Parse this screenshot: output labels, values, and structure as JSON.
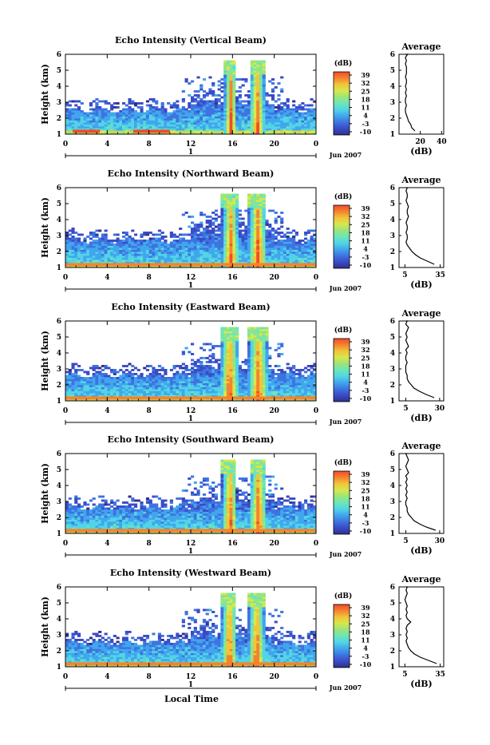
{
  "figure": {
    "x_axis_label": "Local Time",
    "date_label": "Jun 2007",
    "day_label": "1"
  },
  "colors": {
    "colormap": [
      "#30308a",
      "#3a4bc6",
      "#3f73e0",
      "#41a6ee",
      "#52d4e6",
      "#6ce6b8",
      "#9be47a",
      "#d6e84c",
      "#f2c43a",
      "#f5832e",
      "#f24a2c"
    ],
    "line": "#000000",
    "background": "#ffffff"
  },
  "chart_data": [
    {
      "type": "heatmap",
      "title": "Echo Intensity (Vertical Beam)",
      "ylabel": "Height (km)",
      "xlim": [
        0,
        24
      ],
      "ylim": [
        1,
        6
      ],
      "xticks": [
        "0",
        "4",
        "8",
        "12",
        "16",
        "20",
        "0"
      ],
      "yticks": [
        "1",
        "2",
        "3",
        "4",
        "5",
        "6"
      ],
      "colorbar": {
        "unit": "(dB)",
        "ticks": [
          "39",
          "32",
          "25",
          "18",
          "11",
          "4",
          "-3",
          "-10"
        ]
      },
      "profile": {
        "title": "Average",
        "xlabel": "(dB)",
        "xticks": [
          "20",
          "40"
        ],
        "xlim": [
          0,
          42
        ],
        "x": [
          15,
          12,
          11,
          9,
          8,
          7,
          6,
          6,
          7,
          6,
          6,
          7,
          6,
          7,
          6,
          7,
          7,
          6,
          7,
          7,
          7,
          6,
          7,
          6,
          8,
          6,
          6
        ],
        "y": [
          1.2,
          1.4,
          1.6,
          1.8,
          2.0,
          2.2,
          2.4,
          2.6,
          2.8,
          3.0,
          3.2,
          3.4,
          3.6,
          3.8,
          4.0,
          4.2,
          4.4,
          4.6,
          4.8,
          5.0,
          5.2,
          5.4,
          5.6,
          5.8,
          6.0,
          6.0,
          6.0
        ]
      },
      "features": {
        "low_layer_top_km": 2.5,
        "rain_bands_hours": [
          [
            15.2,
            16.4
          ],
          [
            17.6,
            19.0
          ]
        ],
        "surface_band_hours": [
          [
            0.7,
            3.3
          ],
          [
            6.5,
            10.0
          ]
        ]
      }
    },
    {
      "type": "heatmap",
      "title": "Echo Intensity (Northward Beam)",
      "ylabel": "Height (km)",
      "xlim": [
        0,
        24
      ],
      "ylim": [
        1,
        6
      ],
      "xticks": [
        "0",
        "4",
        "8",
        "12",
        "16",
        "20",
        "0"
      ],
      "yticks": [
        "1",
        "2",
        "3",
        "4",
        "5",
        "6"
      ],
      "colorbar": {
        "unit": "(dB)",
        "ticks": [
          "39",
          "32",
          "25",
          "18",
          "11",
          "4",
          "-3",
          "-10"
        ]
      },
      "profile": {
        "title": "Average",
        "xlabel": "(dB)",
        "xticks": [
          "5",
          "35"
        ],
        "xlim": [
          0,
          38
        ],
        "x": [
          30,
          24,
          18,
          14,
          11,
          9,
          7,
          6,
          7,
          7,
          6,
          7,
          7,
          6,
          7,
          8,
          7,
          7,
          8,
          7,
          6,
          7,
          7,
          6,
          7,
          6
        ],
        "y": [
          1.2,
          1.4,
          1.6,
          1.8,
          2.0,
          2.2,
          2.4,
          2.6,
          2.8,
          3.0,
          3.2,
          3.4,
          3.6,
          3.8,
          4.0,
          4.2,
          4.4,
          4.6,
          4.8,
          5.0,
          5.2,
          5.4,
          5.6,
          5.8,
          6.0,
          6.0
        ]
      },
      "features": {
        "low_layer_top_km": 2.7,
        "rain_bands_hours": [
          [
            15.0,
            16.5
          ],
          [
            17.5,
            19.2
          ]
        ],
        "surface_band_hours": [
          [
            0.0,
            24.0
          ]
        ]
      }
    },
    {
      "type": "heatmap",
      "title": "Echo Intensity (Eastward Beam)",
      "ylabel": "Height (km)",
      "xlim": [
        0,
        24
      ],
      "ylim": [
        1,
        6
      ],
      "xticks": [
        "0",
        "4",
        "8",
        "12",
        "16",
        "20",
        "0"
      ],
      "yticks": [
        "1",
        "2",
        "3",
        "4",
        "5",
        "6"
      ],
      "colorbar": {
        "unit": "(dB)",
        "ticks": [
          "39",
          "32",
          "25",
          "18",
          "11",
          "4",
          "-3",
          "-10"
        ]
      },
      "profile": {
        "title": "Average",
        "xlabel": "(dB)",
        "xticks": [
          "5",
          "30"
        ],
        "xlim": [
          0,
          33
        ],
        "x": [
          26,
          20,
          15,
          11,
          9,
          7,
          6,
          6,
          5,
          5,
          5,
          6,
          5,
          5,
          6,
          5,
          7,
          6,
          5,
          6,
          5,
          6,
          7,
          5,
          6,
          5
        ],
        "y": [
          1.2,
          1.4,
          1.6,
          1.8,
          2.0,
          2.2,
          2.4,
          2.6,
          2.8,
          3.0,
          3.2,
          3.4,
          3.6,
          3.8,
          4.0,
          4.2,
          4.4,
          4.6,
          4.8,
          5.0,
          5.2,
          5.4,
          5.6,
          5.8,
          6.0,
          6.0
        ]
      },
      "features": {
        "low_layer_top_km": 2.6,
        "rain_bands_hours": [
          [
            14.8,
            16.5
          ],
          [
            17.5,
            19.3
          ]
        ],
        "surface_band_hours": [
          [
            0.0,
            24.0
          ]
        ]
      }
    },
    {
      "type": "heatmap",
      "title": "Echo Intensity (Southward Beam)",
      "ylabel": "Height (km)",
      "xlim": [
        0,
        24
      ],
      "ylim": [
        1,
        6
      ],
      "xticks": [
        "0",
        "4",
        "8",
        "12",
        "16",
        "20",
        "0"
      ],
      "yticks": [
        "1",
        "2",
        "3",
        "4",
        "5",
        "6"
      ],
      "colorbar": {
        "unit": "(dB)",
        "ticks": [
          "39",
          "32",
          "25",
          "18",
          "11",
          "4",
          "-3",
          "-10"
        ]
      },
      "profile": {
        "title": "Average",
        "xlabel": "(dB)",
        "xticks": [
          "5",
          "30"
        ],
        "xlim": [
          0,
          33
        ],
        "x": [
          27,
          20,
          15,
          11,
          9,
          7,
          6,
          6,
          5,
          5,
          6,
          5,
          6,
          5,
          6,
          5,
          6,
          5,
          7,
          6,
          5,
          6,
          7,
          6,
          5,
          6
        ],
        "y": [
          1.2,
          1.4,
          1.6,
          1.8,
          2.0,
          2.2,
          2.4,
          2.6,
          2.8,
          3.0,
          3.2,
          3.4,
          3.6,
          3.8,
          4.0,
          4.2,
          4.4,
          4.6,
          4.8,
          5.0,
          5.2,
          5.4,
          5.6,
          5.8,
          6.0,
          6.0
        ]
      },
      "features": {
        "low_layer_top_km": 2.6,
        "rain_bands_hours": [
          [
            15.0,
            16.4
          ],
          [
            17.6,
            19.2
          ]
        ],
        "surface_band_hours": [
          [
            0.0,
            24.0
          ]
        ]
      }
    },
    {
      "type": "heatmap",
      "title": "Echo Intensity (Westward Beam)",
      "ylabel": "Height (km)",
      "xlim": [
        0,
        24
      ],
      "ylim": [
        1,
        6
      ],
      "xticks": [
        "0",
        "4",
        "8",
        "12",
        "16",
        "20",
        "0"
      ],
      "yticks": [
        "1",
        "2",
        "3",
        "4",
        "5",
        "6"
      ],
      "colorbar": {
        "unit": "(dB)",
        "ticks": [
          "39",
          "32",
          "25",
          "18",
          "11",
          "4",
          "-3",
          "-10"
        ]
      },
      "profile": {
        "title": "Average",
        "xlabel": "(dB)",
        "xticks": [
          "5",
          "35"
        ],
        "xlim": [
          0,
          38
        ],
        "x": [
          32,
          25,
          18,
          13,
          10,
          8,
          7,
          6,
          7,
          6,
          7,
          6,
          7,
          10,
          7,
          6,
          7,
          6,
          7,
          6,
          5,
          6,
          7,
          6,
          7,
          6
        ],
        "y": [
          1.2,
          1.4,
          1.6,
          1.8,
          2.0,
          2.2,
          2.4,
          2.6,
          2.8,
          3.0,
          3.2,
          3.4,
          3.6,
          3.8,
          4.0,
          4.2,
          4.4,
          4.6,
          4.8,
          5.0,
          5.2,
          5.4,
          5.6,
          5.8,
          6.0,
          6.0
        ]
      },
      "features": {
        "low_layer_top_km": 2.5,
        "rain_bands_hours": [
          [
            14.9,
            16.4
          ],
          [
            17.5,
            19.0
          ]
        ],
        "surface_band_hours": [
          [
            0.0,
            24.0
          ]
        ]
      }
    }
  ]
}
